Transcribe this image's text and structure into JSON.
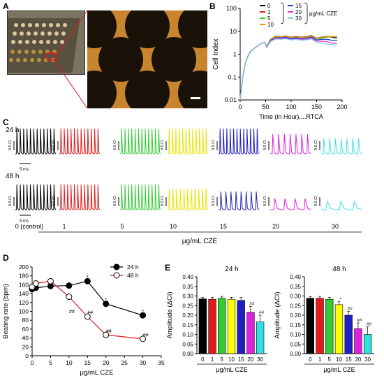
{
  "panels": {
    "a": "A",
    "b": "B",
    "c": "C",
    "d": "D",
    "e": "E"
  },
  "panel_b": {
    "legend": {
      "entries": [
        {
          "label": "0",
          "color": "#000000"
        },
        {
          "label": "1",
          "color": "#e31a1c"
        },
        {
          "label": "5",
          "color": "#33cc33"
        },
        {
          "label": "10",
          "color": "#ff8c00"
        },
        {
          "label": "15",
          "color": "#1f3fbf"
        },
        {
          "label": "20",
          "color": "#e033e0"
        },
        {
          "label": "30",
          "color": "#7ec8e3"
        }
      ],
      "unit": "μg/mL CZE"
    }
  },
  "panel_c": {
    "row_labels": [
      "24 h",
      "48 h"
    ],
    "trace_colors": [
      "#000000",
      "#e31a1c",
      "#33cc33",
      "#e6e600",
      "#2020c0",
      "#e020e0",
      "#40e0e0"
    ],
    "scale_amp": "0.5 CI",
    "scale_time": "5 ms",
    "groups": [
      "0 (control)",
      "1",
      "5",
      "10",
      "15",
      "20",
      "30"
    ],
    "axis_label": "μg/mL CZE"
  },
  "chart_data": [
    {
      "type": "line",
      "panel": "B",
      "xlabel": "Time (in Hour)....RTCA",
      "ylabel": "Cell Index",
      "yscale": "log",
      "xlim": [
        0,
        200
      ],
      "ylim": [
        0.01,
        100
      ],
      "x_ticks": [
        "0",
        "50",
        "100",
        "150",
        "200"
      ],
      "y_ticks": [
        "0.01",
        "0.1",
        "1",
        "10",
        "100"
      ],
      "x": [
        0,
        5,
        10,
        15,
        20,
        30,
        40,
        48,
        52,
        60,
        70,
        80,
        90,
        100,
        110,
        120,
        130,
        140,
        150,
        160,
        170,
        180,
        190
      ],
      "series": [
        {
          "name": "0",
          "color": "#000000",
          "values": [
            0.01,
            0.1,
            0.4,
            0.8,
            1.3,
            2.0,
            2.8,
            3.3,
            2.2,
            4.5,
            6.0,
            5.8,
            6.2,
            5.5,
            6.0,
            5.5,
            5.8,
            6.5,
            5.0,
            5.5,
            6.0,
            5.5,
            5.0
          ]
        },
        {
          "name": "1",
          "color": "#e31a1c",
          "values": [
            0.01,
            0.1,
            0.4,
            0.8,
            1.3,
            2.0,
            2.8,
            3.3,
            2.0,
            4.3,
            5.7,
            5.6,
            6.0,
            5.3,
            5.8,
            5.3,
            5.5,
            6.2,
            4.8,
            5.2,
            5.8,
            5.8,
            6.0
          ]
        },
        {
          "name": "5",
          "color": "#33cc33",
          "values": [
            0.01,
            0.1,
            0.4,
            0.8,
            1.3,
            2.0,
            2.8,
            3.3,
            2.1,
            4.2,
            5.5,
            5.5,
            5.8,
            5.2,
            5.6,
            5.2,
            5.4,
            6.0,
            4.7,
            5.0,
            5.5,
            5.8,
            5.5
          ]
        },
        {
          "name": "10",
          "color": "#ff8c00",
          "values": [
            0.01,
            0.1,
            0.4,
            0.8,
            1.3,
            2.0,
            2.8,
            3.3,
            2.1,
            4.4,
            5.8,
            5.7,
            6.1,
            5.4,
            5.9,
            5.4,
            5.6,
            6.3,
            4.9,
            5.3,
            5.9,
            6.0,
            5.8
          ]
        },
        {
          "name": "15",
          "color": "#1f3fbf",
          "values": [
            0.01,
            0.1,
            0.4,
            0.8,
            1.3,
            2.0,
            2.8,
            3.3,
            2.0,
            4.0,
            5.2,
            5.1,
            5.5,
            4.8,
            5.3,
            4.8,
            5.0,
            5.6,
            4.2,
            4.4,
            4.5,
            4.0,
            4.0
          ]
        },
        {
          "name": "20",
          "color": "#e033e0",
          "values": [
            0.01,
            0.1,
            0.4,
            0.8,
            1.3,
            2.0,
            2.8,
            3.3,
            2.0,
            3.8,
            4.9,
            4.8,
            5.0,
            4.5,
            4.8,
            4.4,
            4.5,
            5.0,
            3.8,
            3.6,
            3.6,
            3.0,
            3.0
          ]
        },
        {
          "name": "30",
          "color": "#7ec8e3",
          "values": [
            0.01,
            0.1,
            0.4,
            0.8,
            1.3,
            2.0,
            2.8,
            3.3,
            2.1,
            3.6,
            4.6,
            4.5,
            4.7,
            4.2,
            4.4,
            4.1,
            4.2,
            4.6,
            3.4,
            3.0,
            2.8,
            2.6,
            2.5
          ]
        }
      ]
    },
    {
      "type": "line",
      "panel": "D",
      "xlabel": "μg/mL CZE",
      "ylabel": "Beating rate (bpm)",
      "xlim": [
        0,
        35
      ],
      "ylim": [
        0,
        200
      ],
      "x_ticks": [
        "0",
        "5",
        "10",
        "15",
        "20",
        "25",
        "30",
        "35"
      ],
      "y_ticks": [
        "0",
        "20",
        "40",
        "60",
        "80",
        "100",
        "120",
        "140",
        "160",
        "180",
        "200"
      ],
      "x": [
        0,
        1,
        5,
        10,
        15,
        20,
        30
      ],
      "series": [
        {
          "name": "24 h",
          "color": "#000000",
          "fill": "#000000",
          "values": [
            150,
            153,
            157,
            158,
            168,
            117,
            91
          ],
          "err": [
            8,
            8,
            8,
            7,
            5,
            6,
            5
          ]
        },
        {
          "name": "48 h",
          "color": "#e31a1c",
          "fill": "#ffffff",
          "values": [
            155,
            163,
            168,
            133,
            88,
            47,
            38
          ],
          "err": [
            8,
            8,
            7,
            7,
            6,
            5,
            5
          ]
        }
      ],
      "annotations": [
        {
          "x": 15,
          "y": 173,
          "text": "*"
        },
        {
          "x": 20,
          "y": 123,
          "text": "*"
        },
        {
          "x": 30,
          "y": 96,
          "text": "*"
        },
        {
          "x": 10,
          "y": 96,
          "text": "##"
        },
        {
          "x": 15,
          "y": 94,
          "text": "##"
        },
        {
          "x": 20,
          "y": 52,
          "text": "##"
        },
        {
          "x": 30,
          "y": 43,
          "text": "##"
        }
      ],
      "legend_position": "top-right"
    },
    {
      "type": "bar",
      "panel": "E",
      "title": "24 h",
      "ylabel": "Amplitude (ΔCI)",
      "xlabel": "μg/mL CZE",
      "ylim": [
        0,
        0.4
      ],
      "y_ticks": [
        "0.00",
        "0.05",
        "0.10",
        "0.15",
        "0.20",
        "0.25",
        "0.30",
        "0.35",
        "0.40"
      ],
      "categories": [
        "0",
        "1",
        "5",
        "10",
        "15",
        "20",
        "30"
      ],
      "colors": [
        "#000000",
        "#e31a1c",
        "#33cc33",
        "#ffff00",
        "#2020c0",
        "#e020e0",
        "#33e0e0"
      ],
      "values": [
        0.285,
        0.283,
        0.288,
        0.283,
        0.277,
        0.215,
        0.165
      ],
      "err": [
        0.008,
        0.01,
        0.01,
        0.01,
        0.015,
        0.03,
        0.035
      ],
      "annotations": [
        "",
        "",
        "",
        "",
        "",
        "##",
        "##"
      ]
    },
    {
      "type": "bar",
      "panel": "E",
      "title": "48 h",
      "ylabel": "Amplitude (ΔCI)",
      "xlabel": "μg/mL CZE",
      "ylim": [
        0,
        0.4
      ],
      "y_ticks": [
        "0.00",
        "0.05",
        "0.10",
        "0.15",
        "0.20",
        "0.25",
        "0.30",
        "0.35",
        "0.40"
      ],
      "categories": [
        "0",
        "1",
        "5",
        "10",
        "15",
        "20",
        "30"
      ],
      "colors": [
        "#000000",
        "#e31a1c",
        "#33cc33",
        "#ffff00",
        "#2020c0",
        "#e020e0",
        "#33e0e0"
      ],
      "values": [
        0.288,
        0.288,
        0.283,
        0.255,
        0.2,
        0.13,
        0.1
      ],
      "err": [
        0.008,
        0.01,
        0.01,
        0.015,
        0.02,
        0.03,
        0.04
      ],
      "annotations": [
        "",
        "",
        "",
        "*",
        "##",
        "##",
        "##"
      ]
    }
  ]
}
